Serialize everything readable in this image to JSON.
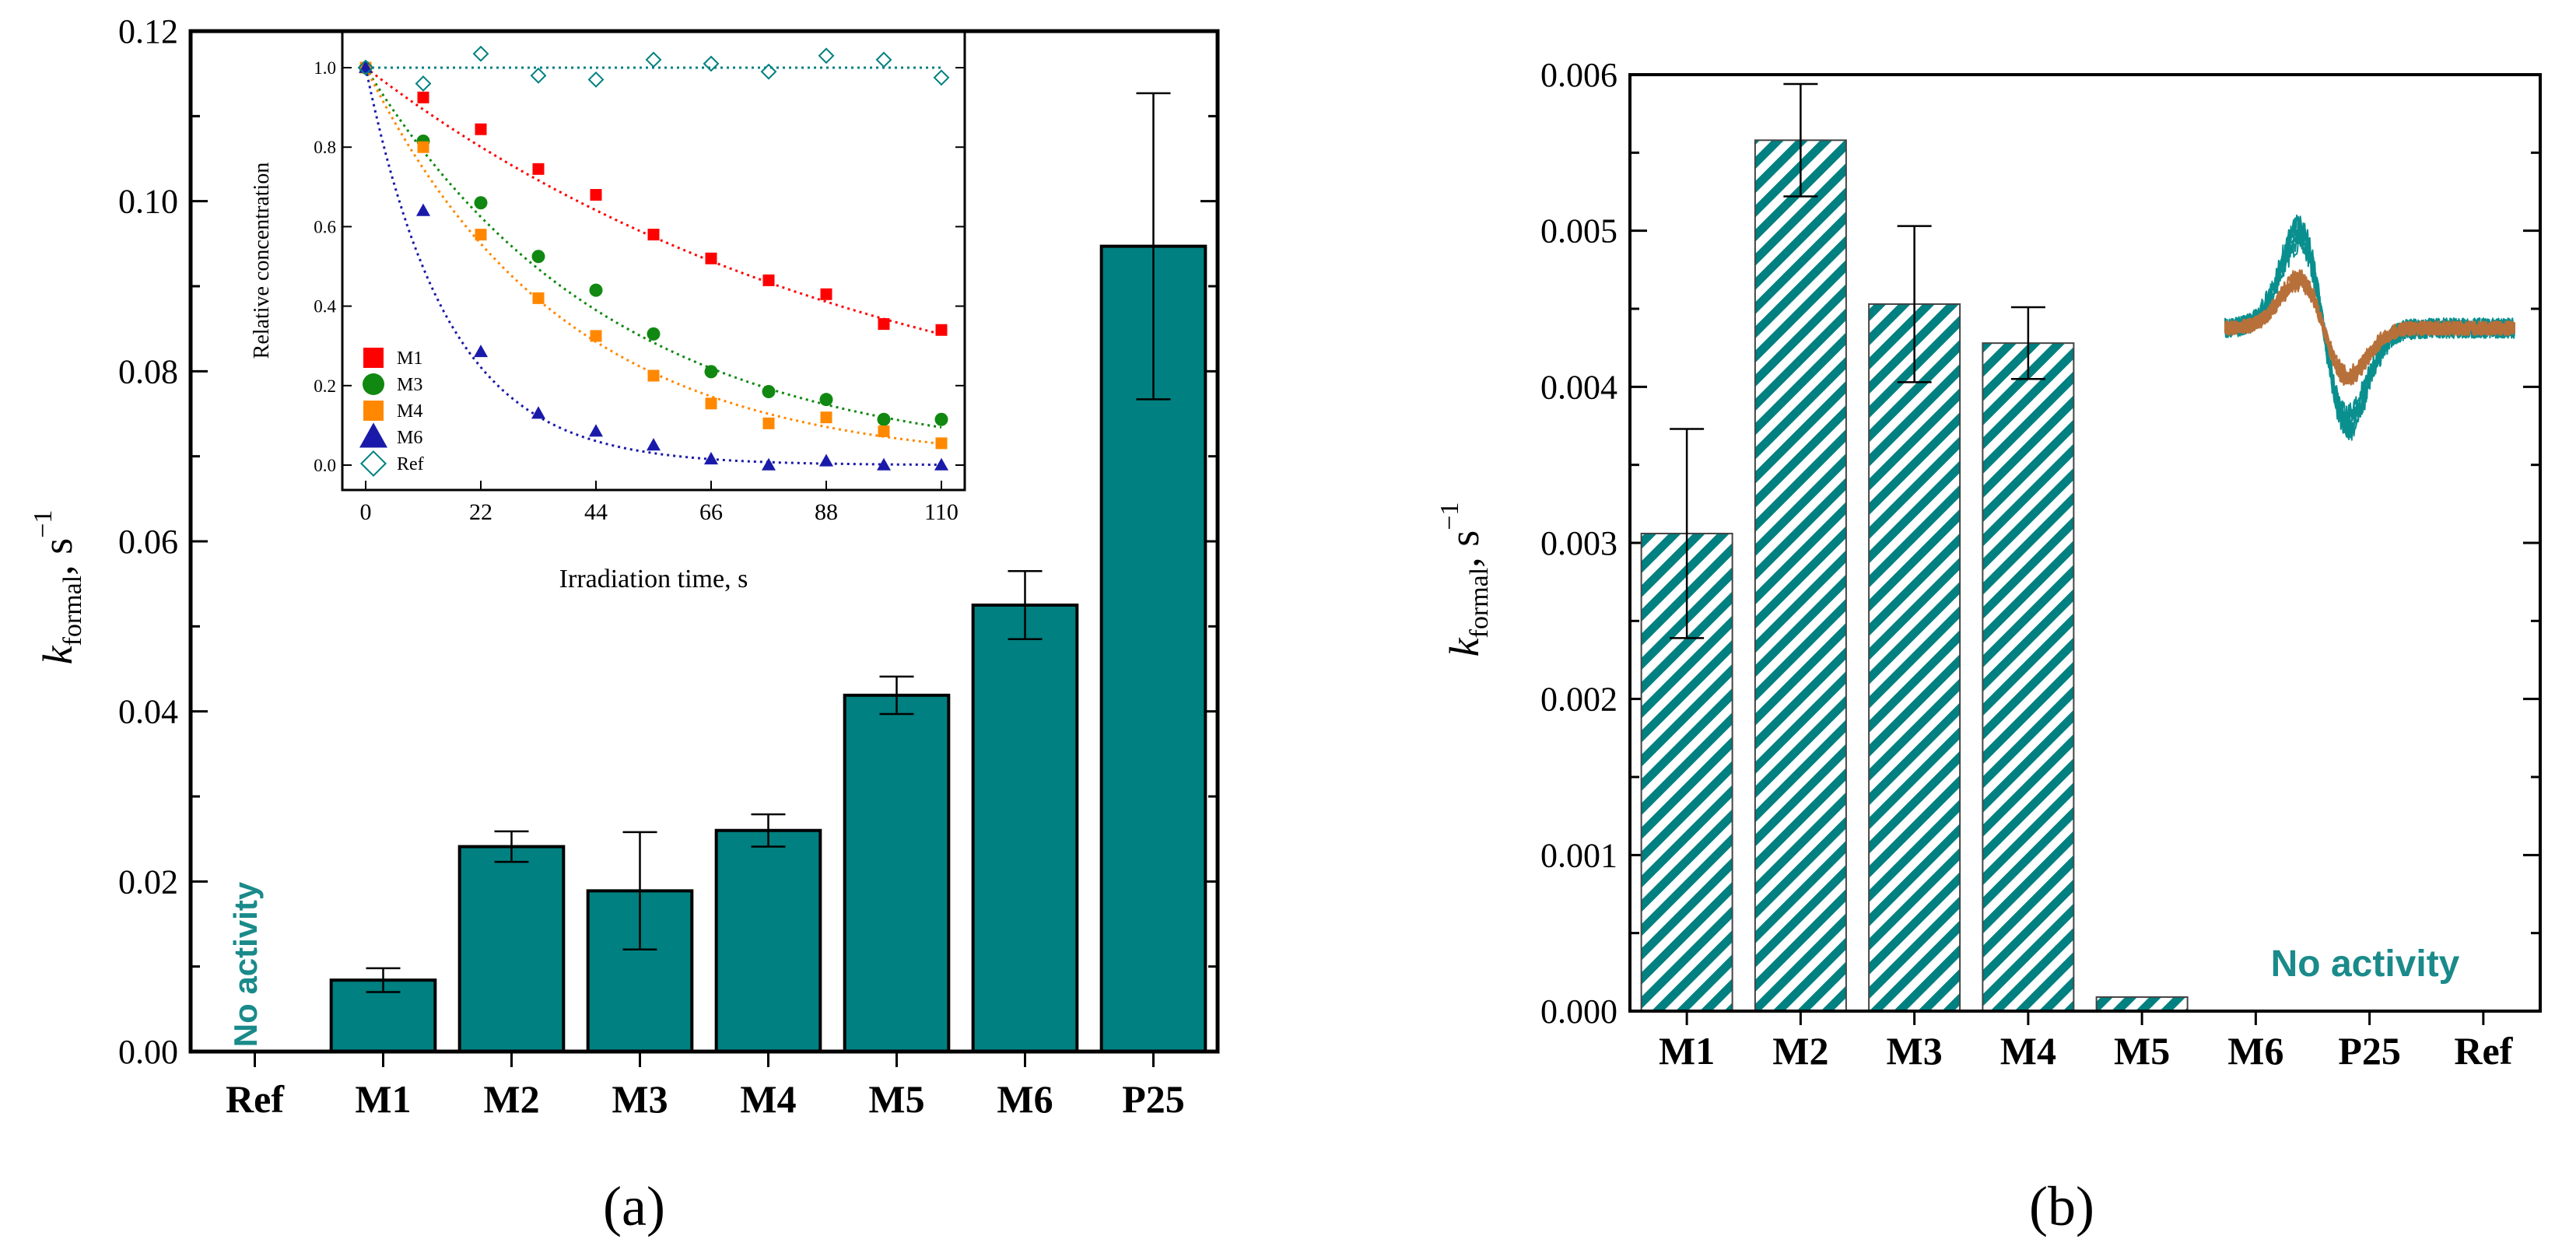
{
  "colors": {
    "teal": "#008080",
    "axis": "#000000",
    "M1": "#ff0000",
    "M3": "#118811",
    "M4": "#ff8800",
    "M6": "#1a1aaa",
    "Ref": "#008080",
    "epr_teal": "#0a8f8f",
    "epr_brown": "#b8703a"
  },
  "chart_data": [
    {
      "id": "a",
      "type": "bar",
      "panel_label": "(a)",
      "ylabel_main": "k",
      "ylabel_sub": "formal",
      "ylabel_unit": ", s",
      "ylabel_exp": "−1",
      "ylim": [
        0,
        0.12
      ],
      "yticks": [
        "0.00",
        "0.02",
        "0.04",
        "0.06",
        "0.08",
        "0.10",
        "0.12"
      ],
      "categories": [
        "Ref",
        "M1",
        "M2",
        "M3",
        "M4",
        "M5",
        "M6",
        "P25"
      ],
      "values": [
        0,
        0.0084,
        0.0241,
        0.0189,
        0.026,
        0.0419,
        0.0525,
        0.0947
      ],
      "errors": [
        0,
        0.0014,
        0.0018,
        0.0069,
        0.0019,
        0.0022,
        0.004,
        0.018
      ],
      "fill": "solid",
      "annotation": "No activity",
      "inset": {
        "type": "scatter",
        "xlabel": "Irradiation time, s",
        "ylabel": "Relative concentration",
        "xlim": [
          0,
          110
        ],
        "ylim": [
          0,
          1.0
        ],
        "xticks": [
          "0",
          "22",
          "44",
          "66",
          "88",
          "110"
        ],
        "yticks": [
          "0.0",
          "0.2",
          "0.4",
          "0.6",
          "0.8",
          "1.0"
        ],
        "x": [
          0,
          11,
          22,
          33,
          44,
          55,
          66,
          77,
          88,
          99,
          110
        ],
        "legend_position": "bottom-left",
        "series": [
          {
            "name": "M1",
            "marker": "square",
            "values": [
              1.0,
              0.925,
              0.845,
              0.745,
              0.68,
              0.58,
              0.52,
              0.465,
              0.43,
              0.355,
              0.34
            ]
          },
          {
            "name": "M3",
            "marker": "circle",
            "values": [
              1.0,
              0.815,
              0.66,
              0.525,
              0.44,
              0.33,
              0.235,
              0.185,
              0.165,
              0.115,
              0.115
            ]
          },
          {
            "name": "M4",
            "marker": "square",
            "values": [
              1.0,
              0.8,
              0.58,
              0.42,
              0.325,
              0.225,
              0.155,
              0.105,
              0.12,
              0.085,
              0.055
            ]
          },
          {
            "name": "M6",
            "marker": "triangle",
            "values": [
              1.0,
              0.64,
              0.285,
              0.13,
              0.085,
              0.05,
              0.015,
              0.0,
              0.01,
              0.0,
              0.0
            ]
          },
          {
            "name": "Ref",
            "marker": "diamond-open",
            "values": [
              1.0,
              0.96,
              1.035,
              0.98,
              0.97,
              1.02,
              1.01,
              0.99,
              1.03,
              1.02,
              0.975
            ]
          }
        ],
        "fits": [
          {
            "name": "M1",
            "k": 0.0101
          },
          {
            "name": "M3",
            "k": 0.0214
          },
          {
            "name": "M4",
            "k": 0.0266
          },
          {
            "name": "M6",
            "k": 0.0637
          },
          {
            "name": "Ref",
            "constant": 1.0
          }
        ]
      }
    },
    {
      "id": "b",
      "type": "bar",
      "panel_label": "(b)",
      "ylabel_main": "k",
      "ylabel_sub": "formal",
      "ylabel_unit": ", s",
      "ylabel_exp": "−1",
      "ylim": [
        0,
        0.006
      ],
      "yticks": [
        "0.000",
        "0.001",
        "0.002",
        "0.003",
        "0.004",
        "0.005",
        "0.006"
      ],
      "categories": [
        "M1",
        "M2",
        "M3",
        "M4",
        "M5",
        "M6",
        "P25",
        "Ref"
      ],
      "values": [
        0.00306,
        0.00558,
        0.00453,
        0.00428,
        9e-05,
        0,
        0,
        0
      ],
      "errors": [
        0.00067,
        0.00036,
        0.0005,
        0.00023,
        0,
        0,
        0,
        0
      ],
      "fill": "hatched",
      "annotation": "No activity",
      "inset_image": "epr-spectrum"
    }
  ]
}
